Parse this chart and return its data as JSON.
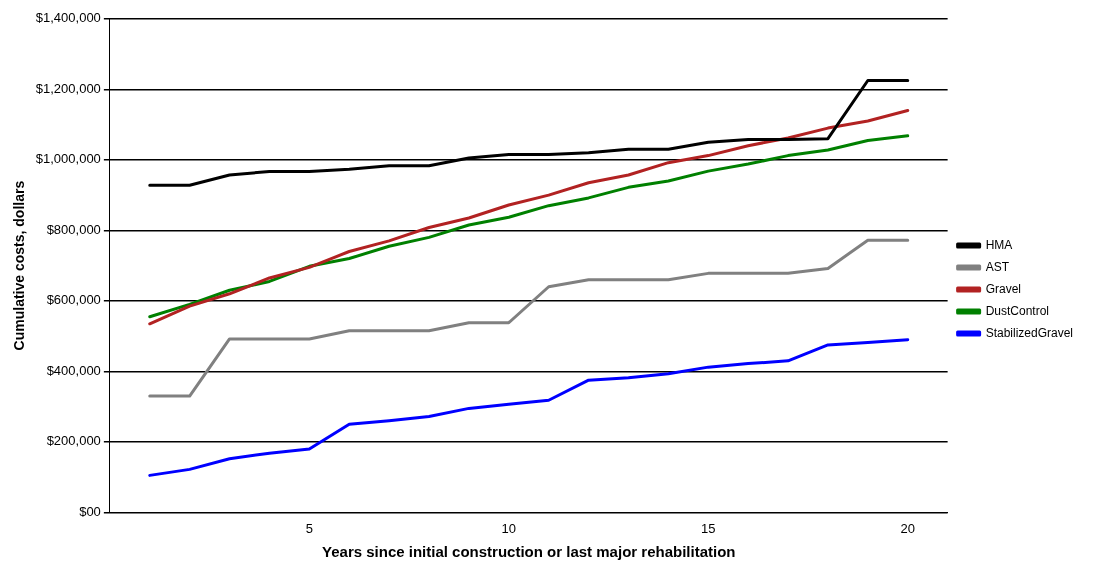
{
  "chart_data": {
    "type": "line",
    "xlabel": "Years since initial construction or last major rehabilitation",
    "ylabel": "Cumulative costs, dollars",
    "x": [
      1,
      2,
      3,
      4,
      5,
      6,
      7,
      8,
      9,
      10,
      11,
      12,
      13,
      14,
      15,
      16,
      17,
      18,
      19,
      20
    ],
    "xlim": [
      0,
      21
    ],
    "xticks": [
      5,
      10,
      15,
      20
    ],
    "ylim": [
      0,
      1400000
    ],
    "yticks": [
      {
        "value": 0,
        "label": "$00"
      },
      {
        "value": 200000,
        "label": "$200,000"
      },
      {
        "value": 400000,
        "label": "$400,000"
      },
      {
        "value": 600000,
        "label": "$600,000"
      },
      {
        "value": 800000,
        "label": "$800,000"
      },
      {
        "value": 1000000,
        "label": "$1,000,000"
      },
      {
        "value": 1200000,
        "label": "$1,200,000"
      },
      {
        "value": 1400000,
        "label": "$1,400,000"
      }
    ],
    "grid": "y",
    "legend": "right",
    "marker": "none",
    "line_style": "solid",
    "series": [
      {
        "name": "HMA",
        "color": "#000000",
        "values": [
          928000,
          928000,
          957000,
          967000,
          967000,
          973000,
          983000,
          983000,
          1005000,
          1015000,
          1015000,
          1020000,
          1030000,
          1030000,
          1050000,
          1058000,
          1058000,
          1060000,
          1225000,
          1225000
        ]
      },
      {
        "name": "AST",
        "color": "#808080",
        "values": [
          330000,
          330000,
          492000,
          492000,
          492000,
          515000,
          515000,
          515000,
          538000,
          538000,
          640000,
          660000,
          660000,
          660000,
          678000,
          678000,
          678000,
          692000,
          772000,
          772000
        ]
      },
      {
        "name": "Gravel",
        "color": "#b22222",
        "values": [
          535000,
          585000,
          620000,
          665000,
          695000,
          740000,
          770000,
          808000,
          835000,
          872000,
          900000,
          935000,
          957000,
          992000,
          1012000,
          1040000,
          1062000,
          1090000,
          1110000,
          1140000
        ]
      },
      {
        "name": "DustControl",
        "color": "#008000",
        "values": [
          555000,
          590000,
          630000,
          655000,
          698000,
          720000,
          755000,
          780000,
          815000,
          837000,
          870000,
          892000,
          922000,
          940000,
          968000,
          988000,
          1012000,
          1028000,
          1055000,
          1068000
        ]
      },
      {
        "name": "StabilizedGravel",
        "color": "#0000ff",
        "values": [
          105000,
          122000,
          152000,
          168000,
          180000,
          250000,
          260000,
          272000,
          295000,
          307000,
          318000,
          375000,
          382000,
          393000,
          412000,
          422000,
          430000,
          475000,
          482000,
          490000
        ]
      }
    ]
  }
}
